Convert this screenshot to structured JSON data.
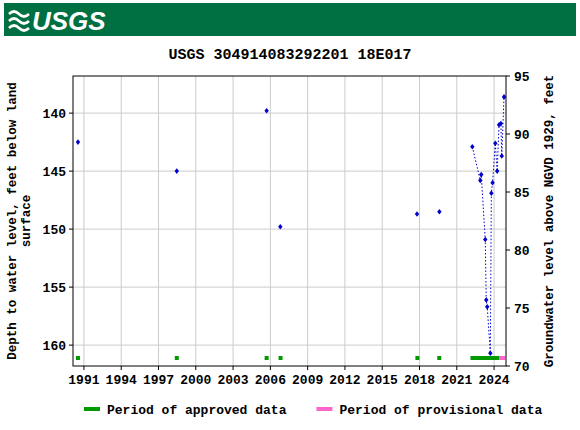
{
  "chart_data": {
    "type": "line",
    "header": "USGS",
    "title": "USGS 304914083292201 18E017",
    "y_label": [
      "Depth to water level, feet below land",
      "surface"
    ],
    "y2_label": "Groundwater level above NGVD 1929, feet",
    "x": [
      1990.52,
      null,
      1998.47,
      null,
      2005.7,
      null,
      2006.8,
      null,
      2017.8,
      null,
      2019.6,
      null,
      2022.25,
      2022.89,
      2022.97,
      2023.29,
      2023.37,
      2023.45,
      2023.7,
      2023.78,
      2023.88,
      2024.1,
      2024.25,
      2024.4,
      2024.55,
      2024.62,
      2024.8
    ],
    "values": [
      142.5,
      null,
      145.0,
      null,
      139.8,
      null,
      149.8,
      null,
      148.7,
      null,
      148.5,
      null,
      142.9,
      145.8,
      145.3,
      150.9,
      156.1,
      156.7,
      160.7,
      146.9,
      146.0,
      142.6,
      145.0,
      141.0,
      140.9,
      143.7,
      138.6
    ],
    "color": "#0000cc",
    "marker": "diamond",
    "line_style": "dotted",
    "xlim": [
      1990.12,
      2024.96
    ],
    "xticks": [
      1991,
      1994,
      1997,
      2000,
      2003,
      2006,
      2009,
      2012,
      2015,
      2018,
      2021,
      2024
    ],
    "ylim": [
      161.8,
      136.8
    ],
    "yticks": [
      140,
      145,
      150,
      155,
      160
    ],
    "y2lim": [
      70,
      95
    ],
    "y2ticks": [
      70,
      75,
      80,
      85,
      90,
      95
    ],
    "grid": true,
    "legend": "bottom",
    "periods": [
      {
        "name": "Period of approved data",
        "color": "#009900",
        "ranges": [
          [
            1990.36,
            1990.68
          ],
          [
            1998.31,
            1998.63
          ],
          [
            2005.54,
            2005.86
          ],
          [
            2006.66,
            2006.98
          ],
          [
            2017.67,
            2017.99
          ],
          [
            2019.43,
            2019.75
          ],
          [
            2022.1,
            2024.4
          ]
        ]
      },
      {
        "name": "Period of provisional data",
        "color": "#ff66cc",
        "ranges": [
          [
            2024.4,
            2024.9
          ]
        ]
      }
    ]
  }
}
